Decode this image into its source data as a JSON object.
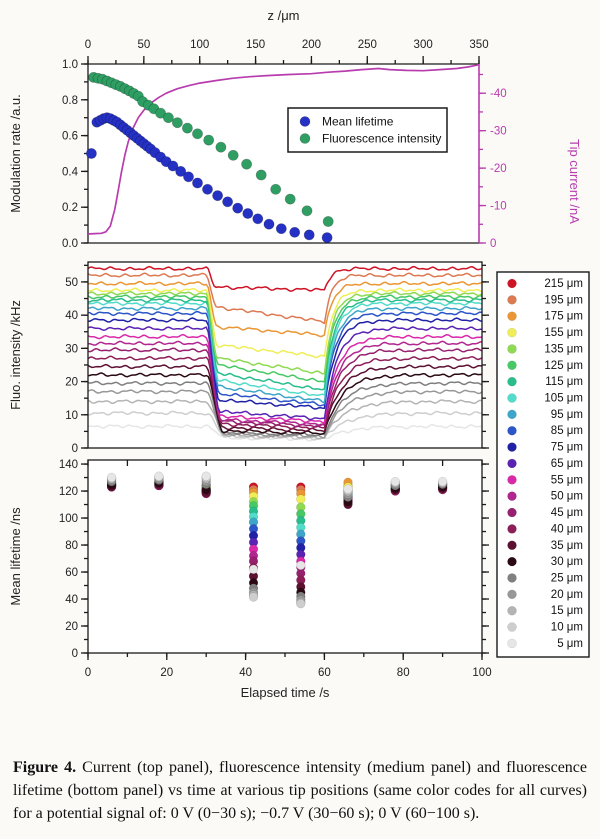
{
  "figure": {
    "caption_label": "Figure 4.",
    "caption_text": " Current (top panel), fluorescence intensity (medium panel) and fluorescence lifetime (bottom panel) vs time at various tip positions (same color codes for all curves) for a potential signal of: 0 V (0−30 s); −0.7 V (30−60 s); 0 V (60−100 s)."
  },
  "colors": {
    "axis": "#1a1a1a",
    "tick_text": "#222222",
    "magenta": "#b83cae",
    "blue": "#2531c4",
    "green": "#2f9e63",
    "panel_bg": "#ffffff"
  },
  "z_legend": [
    {
      "label": "215 μm",
      "color": "#ce1324"
    },
    {
      "label": "195 μm",
      "color": "#dc7a52"
    },
    {
      "label": "175 μm",
      "color": "#eb9634"
    },
    {
      "label": "155 μm",
      "color": "#f0ee58"
    },
    {
      "label": "135 μm",
      "color": "#8eda52"
    },
    {
      "label": "125 μm",
      "color": "#46c964"
    },
    {
      "label": "115 μm",
      "color": "#27bd8c"
    },
    {
      "label": "105 μm",
      "color": "#54dccb"
    },
    {
      "label": "95 μm",
      "color": "#3ea5ca"
    },
    {
      "label": "85 μm",
      "color": "#2b55c8"
    },
    {
      "label": "75 μm",
      "color": "#2021a6"
    },
    {
      "label": "65 μm",
      "color": "#5a23b4"
    },
    {
      "label": "55 μm",
      "color": "#d929a8"
    },
    {
      "label": "50 μm",
      "color": "#b1268f"
    },
    {
      "label": "45 μm",
      "color": "#97216f"
    },
    {
      "label": "40 μm",
      "color": "#8e1e58"
    },
    {
      "label": "35 μm",
      "color": "#5c1133"
    },
    {
      "label": "30 μm",
      "color": "#2a0913"
    },
    {
      "label": "25 μm",
      "color": "#7f7f7f"
    },
    {
      "label": "20 μm",
      "color": "#989898"
    },
    {
      "label": "15 μm",
      "color": "#b4b4b4"
    },
    {
      "label": "10 μm",
      "color": "#cecece"
    },
    {
      "label": "5 μm",
      "color": "#e6e6e6"
    }
  ],
  "chart_data": [
    {
      "type": "scatter",
      "name": "top-panel",
      "x_axis": {
        "label": "z /μm",
        "min": 0,
        "max": 350,
        "major_ticks": [
          0,
          50,
          100,
          150,
          200,
          250,
          300,
          350
        ],
        "minor_step": 25,
        "position": "top"
      },
      "y_left": {
        "label": "Modulation rate /a.u.",
        "min": 0.0,
        "max": 1.0,
        "major_ticks": [
          0.0,
          0.2,
          0.4,
          0.6,
          0.8,
          1.0
        ],
        "minor_step": 0.1
      },
      "y_right": {
        "label": "Tip current /nA",
        "min": 0,
        "max": -47.8,
        "major_ticks": [
          0,
          -10,
          -20,
          -30,
          -40
        ],
        "minor_step": 5
      },
      "legend": [
        {
          "label": "Mean lifetime",
          "color_key": "blue"
        },
        {
          "label": "Fluorescence intensity",
          "color_key": "green"
        }
      ],
      "series": [
        {
          "name": "Mean lifetime",
          "color_key": "blue",
          "kind": "scatter",
          "points": [
            [
              3,
              0.5
            ],
            [
              8,
              0.675
            ],
            [
              11,
              0.685
            ],
            [
              14,
              0.695
            ],
            [
              17,
              0.7
            ],
            [
              20,
              0.695
            ],
            [
              23,
              0.685
            ],
            [
              26,
              0.675
            ],
            [
              29,
              0.66
            ],
            [
              32,
              0.645
            ],
            [
              35,
              0.63
            ],
            [
              38,
              0.615
            ],
            [
              41,
              0.6
            ],
            [
              44,
              0.585
            ],
            [
              47,
              0.57
            ],
            [
              50,
              0.555
            ],
            [
              53,
              0.54
            ],
            [
              56,
              0.525
            ],
            [
              60,
              0.505
            ],
            [
              65,
              0.48
            ],
            [
              70,
              0.455
            ],
            [
              76,
              0.43
            ],
            [
              83,
              0.4
            ],
            [
              90,
              0.37
            ],
            [
              98,
              0.335
            ],
            [
              107,
              0.3
            ],
            [
              116,
              0.265
            ],
            [
              125,
              0.23
            ],
            [
              134,
              0.195
            ],
            [
              143,
              0.165
            ],
            [
              152,
              0.135
            ],
            [
              162,
              0.105
            ],
            [
              173,
              0.08
            ],
            [
              185,
              0.06
            ],
            [
              198,
              0.045
            ],
            [
              214,
              0.03
            ]
          ]
        },
        {
          "name": "Fluorescence intensity",
          "color_key": "green",
          "kind": "scatter",
          "points": [
            [
              5,
              0.925
            ],
            [
              9,
              0.92
            ],
            [
              13,
              0.915
            ],
            [
              17,
              0.905
            ],
            [
              21,
              0.895
            ],
            [
              25,
              0.885
            ],
            [
              29,
              0.875
            ],
            [
              33,
              0.862
            ],
            [
              37,
              0.85
            ],
            [
              41,
              0.835
            ],
            [
              45,
              0.82
            ],
            [
              49,
              0.79
            ],
            [
              54,
              0.77
            ],
            [
              59,
              0.75
            ],
            [
              65,
              0.725
            ],
            [
              72,
              0.7
            ],
            [
              80,
              0.672
            ],
            [
              89,
              0.642
            ],
            [
              98,
              0.61
            ],
            [
              108,
              0.575
            ],
            [
              119,
              0.535
            ],
            [
              130,
              0.49
            ],
            [
              142,
              0.44
            ],
            [
              155,
              0.38
            ],
            [
              168,
              0.3
            ],
            [
              181,
              0.245
            ],
            [
              196,
              0.18
            ],
            [
              215,
              0.12
            ]
          ]
        },
        {
          "name": "Tip current",
          "color_key": "magenta",
          "kind": "line",
          "axis": "right",
          "points": [
            [
              0,
              -2.4
            ],
            [
              6,
              -2.5
            ],
            [
              12,
              -2.6
            ],
            [
              16,
              -3
            ],
            [
              20,
              -4.5
            ],
            [
              24,
              -9
            ],
            [
              27,
              -14
            ],
            [
              30,
              -19
            ],
            [
              33,
              -23.5
            ],
            [
              36,
              -27
            ],
            [
              40,
              -30.5
            ],
            [
              45,
              -33.5
            ],
            [
              50,
              -35.5
            ],
            [
              56,
              -37.3
            ],
            [
              63,
              -38.8
            ],
            [
              70,
              -40
            ],
            [
              80,
              -41.2
            ],
            [
              90,
              -42
            ],
            [
              100,
              -42.7
            ],
            [
              115,
              -43.4
            ],
            [
              130,
              -44
            ],
            [
              145,
              -44.4
            ],
            [
              160,
              -44.7
            ],
            [
              180,
              -45
            ],
            [
              200,
              -45.2
            ],
            [
              215,
              -45.6
            ],
            [
              230,
              -45.9
            ],
            [
              245,
              -46.3
            ],
            [
              260,
              -46.6
            ],
            [
              270,
              -46.3
            ],
            [
              285,
              -46.1
            ],
            [
              300,
              -46
            ],
            [
              315,
              -46.3
            ],
            [
              330,
              -46.6
            ],
            [
              340,
              -47
            ],
            [
              350,
              -47.6
            ]
          ]
        }
      ]
    },
    {
      "type": "line",
      "name": "middle-panel",
      "x_axis": {
        "min": 0,
        "max": 100
      },
      "y_axis": {
        "label": "Fluo. intensity /kHz",
        "min": 0,
        "max": 56,
        "major_ticks": [
          0,
          10,
          20,
          30,
          40,
          50
        ],
        "minor_step": 5
      },
      "potential_steps": {
        "baseline_interval": "0-30 s",
        "dip_interval": "30-60 s",
        "recovery_interval": "60-100 s"
      },
      "series": [
        {
          "z": "215 μm",
          "baseline": 54.0,
          "dip_start": 48.5,
          "dip_end": 47.5
        },
        {
          "z": "195 μm",
          "baseline": 52.0,
          "dip_start": 42.5,
          "dip_end": 38.0
        },
        {
          "z": "175 μm",
          "baseline": 49.5,
          "dip_start": 36.5,
          "dip_end": 34.0
        },
        {
          "z": "155 μm",
          "baseline": 47.5,
          "dip_start": 31.0,
          "dip_end": 27.5
        },
        {
          "z": "135 μm",
          "baseline": 46.5,
          "dip_start": 27.0,
          "dip_end": 22.5
        },
        {
          "z": "125 μm",
          "baseline": 45.5,
          "dip_start": 25.0,
          "dip_end": 20.0
        },
        {
          "z": "115 μm",
          "baseline": 44.5,
          "dip_start": 22.5,
          "dip_end": 17.5
        },
        {
          "z": "105 μm",
          "baseline": 43.5,
          "dip_start": 20.5,
          "dip_end": 15.5
        },
        {
          "z": "95 μm",
          "baseline": 42.0,
          "dip_start": 18.5,
          "dip_end": 14.0
        },
        {
          "z": "85 μm",
          "baseline": 40.5,
          "dip_start": 16.5,
          "dip_end": 13.0
        },
        {
          "z": "75 μm",
          "baseline": 38.5,
          "dip_start": 14.5,
          "dip_end": 12.0
        },
        {
          "z": "65 μm",
          "baseline": 36.0,
          "dip_start": 11.0,
          "dip_end": 8.8
        },
        {
          "z": "55 μm",
          "baseline": 33.5,
          "dip_start": 9.5,
          "dip_end": 8.0
        },
        {
          "z": "50 μm",
          "baseline": 31.5,
          "dip_start": 8.5,
          "dip_end": 7.2
        },
        {
          "z": "45 μm",
          "baseline": 29.5,
          "dip_start": 8.0,
          "dip_end": 6.6
        },
        {
          "z": "40 μm",
          "baseline": 27.0,
          "dip_start": 7.2,
          "dip_end": 6.0
        },
        {
          "z": "35 μm",
          "baseline": 24.5,
          "dip_start": 6.2,
          "dip_end": 5.2
        },
        {
          "z": "30 μm",
          "baseline": 22.0,
          "dip_start": 5.2,
          "dip_end": 4.4
        },
        {
          "z": "25 μm",
          "baseline": 19.5,
          "dip_start": 4.6,
          "dip_end": 3.9
        },
        {
          "z": "20 μm",
          "baseline": 17.0,
          "dip_start": 4.2,
          "dip_end": 3.5
        },
        {
          "z": "15 μm",
          "baseline": 14.0,
          "dip_start": 3.8,
          "dip_end": 3.2
        },
        {
          "z": "10 μm",
          "baseline": 10.5,
          "dip_start": 3.4,
          "dip_end": 2.9
        },
        {
          "z": "5 μm",
          "baseline": 6.5,
          "dip_start": 3.0,
          "dip_end": 2.6
        }
      ]
    },
    {
      "type": "scatter",
      "name": "bottom-panel",
      "x_axis": {
        "label": "Elapsed time /s",
        "min": 0,
        "max": 100,
        "major_ticks": [
          0,
          20,
          40,
          60,
          80,
          100
        ],
        "minor_step": 10
      },
      "y_axis": {
        "label": "Mean lifetime /ns",
        "min": 0,
        "max": 143,
        "major_ticks": [
          0,
          20,
          40,
          60,
          80,
          100,
          120,
          140
        ],
        "minor_step": 10
      },
      "values_order": "same order as z_legend (215 μm → 5 μm)",
      "clusters": [
        {
          "t": 6,
          "values": [
            126,
            126,
            126,
            125.5,
            125,
            125,
            125,
            124.5,
            124.5,
            124,
            124,
            124,
            123.5,
            123.5,
            123,
            123,
            123.5,
            124.5,
            127,
            128,
            129,
            129.5,
            130
          ]
        },
        {
          "t": 18,
          "values": [
            127,
            127,
            126.5,
            126,
            126,
            126,
            125.5,
            125.5,
            125,
            125,
            125,
            124.5,
            124.5,
            124,
            124,
            124,
            125,
            126,
            128,
            129,
            130,
            130.5,
            131
          ]
        },
        {
          "t": 30,
          "values": [
            124,
            123.5,
            123,
            122.5,
            122,
            121.5,
            121,
            121,
            120.5,
            120,
            120,
            119.5,
            119,
            119,
            118.5,
            118,
            119,
            121,
            125,
            127,
            129,
            130,
            131
          ]
        },
        {
          "t": 42,
          "values": [
            123,
            121,
            119,
            116,
            112,
            109,
            105,
            101,
            97,
            92,
            87,
            82,
            77,
            72,
            68,
            63,
            57,
            52,
            48,
            45,
            43,
            41.5,
            62
          ]
        },
        {
          "t": 54,
          "values": [
            123,
            121,
            118,
            114,
            108,
            103,
            98,
            93,
            88,
            83,
            78,
            73,
            68,
            63.5,
            59,
            54,
            49,
            45,
            42,
            39.5,
            37.5,
            36.5,
            65
          ]
        },
        {
          "t": 66,
          "values": [
            121,
            124,
            126.5,
            123,
            120.5,
            119.5,
            118.5,
            117.5,
            116.5,
            116,
            115,
            114.5,
            114,
            113.5,
            112.5,
            111.5,
            110,
            112,
            115.5,
            117.5,
            119.5,
            120.5,
            121.5
          ]
        },
        {
          "t": 78,
          "values": [
            124,
            124,
            124.5,
            124,
            123.5,
            123,
            122.5,
            122,
            122,
            121.5,
            121,
            121,
            120.5,
            120.5,
            120,
            120,
            121,
            122,
            124,
            125,
            126,
            126.5,
            127
          ]
        },
        {
          "t": 90,
          "values": [
            125,
            125,
            125,
            124.5,
            124,
            124,
            123.5,
            123,
            123,
            123,
            122.5,
            122,
            122,
            122,
            121.5,
            121,
            122,
            123,
            125,
            125.5,
            126,
            126.5,
            127
          ]
        }
      ]
    }
  ]
}
